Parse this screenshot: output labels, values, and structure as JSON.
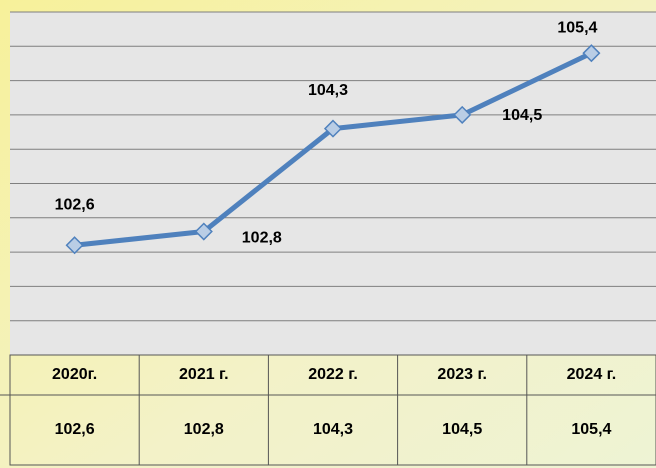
{
  "chart_data": {
    "type": "line",
    "categories": [
      "2020г.",
      "2021 г.",
      "2022 г.",
      "2023 г.",
      "2024 г."
    ],
    "series": [
      {
        "color": "#4f81bd",
        "values": [
          102.6,
          102.8,
          104.3,
          104.5,
          105.4
        ],
        "value_labels": [
          "102,6",
          "102,8",
          "104,3",
          "104,5",
          "105,4"
        ]
      }
    ],
    "ylim": [
      101,
      106
    ],
    "yticks": [
      101,
      101.5,
      102,
      102.5,
      103,
      103.5,
      104,
      104.5,
      105,
      105.5,
      106
    ],
    "grid": true
  }
}
